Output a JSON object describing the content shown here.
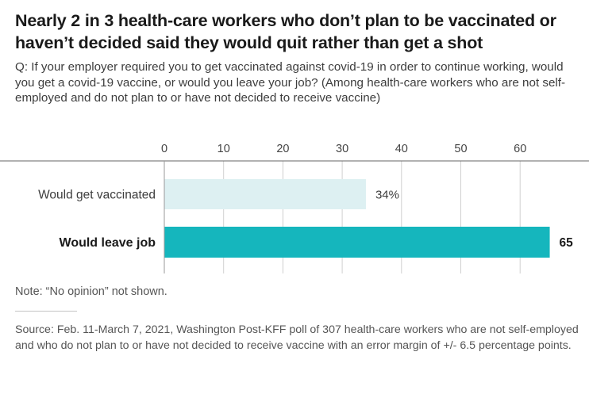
{
  "title": "Nearly 2 in 3 health-care workers who don’t plan to be vaccinated or haven’t decided said they would quit rather than get a shot",
  "question": "Q: If your employer required you to get vaccinated against covid-19 in order to continue working, would you get a covid-19 vaccine, or would you leave your job? (Among health-care workers who are not self-employed and do not plan to or have not decided to receive vaccine)",
  "note": "Note: “No opinion” not shown.",
  "source": "Source: Feb. 11-March 7, 2021, Washington Post-KFF poll of 307 health-care workers who are not self-employed and who do not plan to or have not decided to receive vaccine with an error margin of +/- 6.5 percentage points.",
  "colors": {
    "would_get_vaccinated": "#ddf0f2",
    "would_leave_job": "#15b6bd"
  },
  "chart_data": {
    "type": "bar",
    "orientation": "horizontal",
    "categories": [
      "Would get vaccinated",
      "Would leave job"
    ],
    "values": [
      34,
      65
    ],
    "value_labels": [
      "34%",
      "65"
    ],
    "category_emphasis": [
      "normal",
      "bold"
    ],
    "xlim": [
      0,
      65
    ],
    "xticks": [
      0,
      10,
      20,
      30,
      40,
      50,
      60
    ],
    "xtick_labels": [
      "0",
      "10",
      "20",
      "30",
      "40",
      "50",
      "60"
    ],
    "grid": true,
    "title": "",
    "xlabel": "",
    "ylabel": ""
  }
}
